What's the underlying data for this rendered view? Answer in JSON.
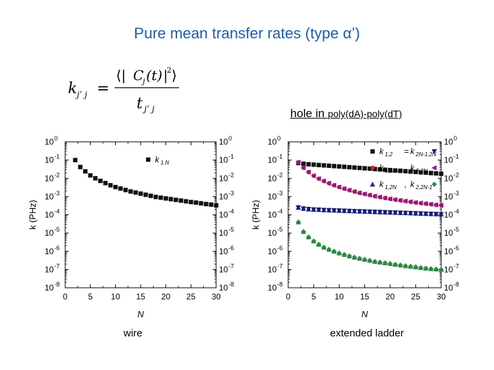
{
  "title": "Pure mean transfer rates (type α’)",
  "formula": {
    "lhs_base": "k",
    "lhs_sub": "j’ j",
    "equals": "=",
    "num_open": "⟨|",
    "num_c": "C",
    "num_csub": "j",
    "num_t": "(t)",
    "num_close": "|",
    "num_sup": "2",
    "num_end": "⟩",
    "den_base": "t",
    "den_sub": "j’ j"
  },
  "hole_label": {
    "main": "hole in ",
    "small": "poly(dA)-poly(dT)"
  },
  "captions": {
    "left": "wire",
    "right": "extended ladder"
  },
  "chart_data": [
    {
      "type": "scatter",
      "title": "",
      "xlabel": "N",
      "ylabel": "k (PHz)",
      "xlim": [
        0,
        30
      ],
      "ylim": [
        -8,
        0
      ],
      "y_scale": "log",
      "x_ticks": [
        "0",
        "5",
        "10",
        "15",
        "20",
        "25",
        "30"
      ],
      "y_tick_exponents": [
        "0",
        "-1",
        "-2",
        "-3",
        "-4",
        "-5",
        "-6",
        "-7",
        "-8"
      ],
      "legend_position": "top-right",
      "legend": [
        {
          "base": "k",
          "sub": "1,N"
        }
      ],
      "series": [
        {
          "marker": "square",
          "color": "#111111",
          "x": [
            2,
            3,
            4,
            5,
            6,
            7,
            8,
            9,
            10,
            11,
            12,
            13,
            14,
            15,
            16,
            17,
            18,
            19,
            20,
            21,
            22,
            23,
            24,
            25,
            26,
            27,
            28,
            29,
            30
          ],
          "y": [
            -1.0,
            -1.38,
            -1.62,
            -1.84,
            -2.0,
            -2.14,
            -2.26,
            -2.38,
            -2.48,
            -2.56,
            -2.64,
            -2.72,
            -2.78,
            -2.84,
            -2.9,
            -2.96,
            -3.02,
            -3.06,
            -3.1,
            -3.14,
            -3.18,
            -3.22,
            -3.26,
            -3.3,
            -3.33,
            -3.37,
            -3.41,
            -3.44,
            -3.48
          ]
        }
      ]
    },
    {
      "type": "scatter",
      "title": "",
      "xlabel": "N",
      "ylabel": "k (PHz)",
      "xlim": [
        0,
        30
      ],
      "ylim": [
        -8,
        0
      ],
      "y_scale": "log",
      "x_ticks": [
        "0",
        "5",
        "10",
        "15",
        "20",
        "25",
        "30"
      ],
      "y_tick_exponents": [
        "0",
        "-1",
        "-2",
        "-3",
        "-4",
        "-5",
        "-6",
        "-7",
        "-8"
      ],
      "legend_position": "top-right",
      "legend": [
        {
          "left_base": "k",
          "left_sub": "1,2",
          "right_base": "k",
          "right_sub": "2N-1,2N"
        },
        {
          "left_base": "k",
          "left_sub": "1,2N-1",
          "right_base": "k",
          "right_sub": "2,2N"
        },
        {
          "left_base": "k",
          "left_sub": "1,2N",
          "right_base": "k",
          "right_sub": "2,2N-1"
        }
      ],
      "series": [
        {
          "marker": "square",
          "color": "#111111",
          "x": [
            2,
            3,
            4,
            5,
            6,
            7,
            8,
            9,
            10,
            11,
            12,
            13,
            14,
            15,
            16,
            17,
            18,
            19,
            20,
            21,
            22,
            23,
            24,
            25,
            26,
            27,
            28,
            29,
            30
          ],
          "y": [
            -1.16,
            -1.2,
            -1.23,
            -1.25,
            -1.27,
            -1.29,
            -1.31,
            -1.33,
            -1.35,
            -1.37,
            -1.39,
            -1.41,
            -1.43,
            -1.45,
            -1.47,
            -1.49,
            -1.51,
            -1.53,
            -1.55,
            -1.57,
            -1.59,
            -1.61,
            -1.63,
            -1.65,
            -1.67,
            -1.69,
            -1.71,
            -1.73,
            -1.75
          ]
        },
        {
          "marker": "circle",
          "color": "#d21e2a",
          "x": [
            2,
            3,
            4,
            5,
            6,
            7,
            8,
            9,
            10,
            11,
            12,
            13,
            14,
            15,
            16,
            17,
            18,
            19,
            20,
            21,
            22,
            23,
            24,
            25,
            26,
            27,
            28,
            29,
            30
          ],
          "y": [
            -1.12,
            -1.42,
            -1.66,
            -1.86,
            -2.02,
            -2.15,
            -2.27,
            -2.38,
            -2.48,
            -2.57,
            -2.65,
            -2.73,
            -2.8,
            -2.86,
            -2.92,
            -2.98,
            -3.03,
            -3.08,
            -3.13,
            -3.17,
            -3.21,
            -3.25,
            -3.29,
            -3.33,
            -3.36,
            -3.39,
            -3.42,
            -3.46,
            -3.48
          ]
        },
        {
          "marker": "triangle-left",
          "color": "#8a1c8c",
          "x": [
            2,
            3,
            4,
            5,
            6,
            7,
            8,
            9,
            10,
            11,
            12,
            13,
            14,
            15,
            16,
            17,
            18,
            19,
            20,
            21,
            22,
            23,
            24,
            25,
            26,
            27,
            28,
            29,
            30
          ],
          "y": [
            -1.12,
            -1.42,
            -1.66,
            -1.86,
            -2.02,
            -2.15,
            -2.27,
            -2.38,
            -2.48,
            -2.57,
            -2.65,
            -2.73,
            -2.8,
            -2.86,
            -2.92,
            -2.98,
            -3.03,
            -3.08,
            -3.13,
            -3.17,
            -3.21,
            -3.25,
            -3.29,
            -3.33,
            -3.36,
            -3.39,
            -3.42,
            -3.46,
            -3.48
          ]
        },
        {
          "marker": "triangle-up",
          "color": "#1a2a9a",
          "x": [
            2,
            3,
            4,
            5,
            6,
            7,
            8,
            9,
            10,
            11,
            12,
            13,
            14,
            15,
            16,
            17,
            18,
            19,
            20,
            21,
            22,
            23,
            24,
            25,
            26,
            27,
            28,
            29,
            30
          ],
          "y": [
            -3.6,
            -3.66,
            -3.69,
            -3.71,
            -3.72,
            -3.74,
            -3.75,
            -3.76,
            -3.77,
            -3.78,
            -3.79,
            -3.8,
            -3.81,
            -3.82,
            -3.83,
            -3.84,
            -3.85,
            -3.86,
            -3.87,
            -3.88,
            -3.89,
            -3.9,
            -3.91,
            -3.92,
            -3.93,
            -3.94,
            -3.95,
            -3.96,
            -3.97
          ]
        },
        {
          "marker": "triangle-down",
          "color": "#1a1a6e",
          "x": [
            2,
            3,
            4,
            5,
            6,
            7,
            8,
            9,
            10,
            11,
            12,
            13,
            14,
            15,
            16,
            17,
            18,
            19,
            20,
            21,
            22,
            23,
            24,
            25,
            26,
            27,
            28,
            29,
            30
          ],
          "y": [
            -3.6,
            -3.66,
            -3.69,
            -3.71,
            -3.72,
            -3.74,
            -3.75,
            -3.76,
            -3.77,
            -3.78,
            -3.79,
            -3.8,
            -3.81,
            -3.82,
            -3.83,
            -3.84,
            -3.85,
            -3.86,
            -3.87,
            -3.88,
            -3.89,
            -3.9,
            -3.91,
            -3.92,
            -3.93,
            -3.94,
            -3.95,
            -3.96,
            -3.97
          ]
        },
        {
          "marker": "triangle-up",
          "color": "#1f7a3a",
          "x": [
            2,
            3,
            4,
            5,
            6,
            7,
            8,
            9,
            10,
            11,
            12,
            13,
            14,
            15,
            16,
            17,
            18,
            19,
            20,
            21,
            22,
            23,
            24,
            25,
            26,
            27,
            28,
            29,
            30
          ],
          "y": [
            -4.4,
            -4.92,
            -5.22,
            -5.44,
            -5.62,
            -5.78,
            -5.9,
            -6.0,
            -6.1,
            -6.18,
            -6.26,
            -6.33,
            -6.39,
            -6.45,
            -6.5,
            -6.56,
            -6.6,
            -6.64,
            -6.68,
            -6.72,
            -6.76,
            -6.8,
            -6.83,
            -6.86,
            -6.9,
            -6.93,
            -6.96,
            -6.98,
            -7.0
          ]
        },
        {
          "marker": "diamond",
          "color": "#2a8a44",
          "x": [
            2,
            3,
            4,
            5,
            6,
            7,
            8,
            9,
            10,
            11,
            12,
            13,
            14,
            15,
            16,
            17,
            18,
            19,
            20,
            21,
            22,
            23,
            24,
            25,
            26,
            27,
            28,
            29,
            30
          ],
          "y": [
            -4.4,
            -4.92,
            -5.22,
            -5.44,
            -5.62,
            -5.78,
            -5.9,
            -6.0,
            -6.1,
            -6.18,
            -6.26,
            -6.33,
            -6.39,
            -6.45,
            -6.5,
            -6.56,
            -6.6,
            -6.64,
            -6.68,
            -6.72,
            -6.76,
            -6.8,
            -6.83,
            -6.86,
            -6.9,
            -6.93,
            -6.96,
            -6.98,
            -7.0
          ]
        }
      ]
    }
  ]
}
